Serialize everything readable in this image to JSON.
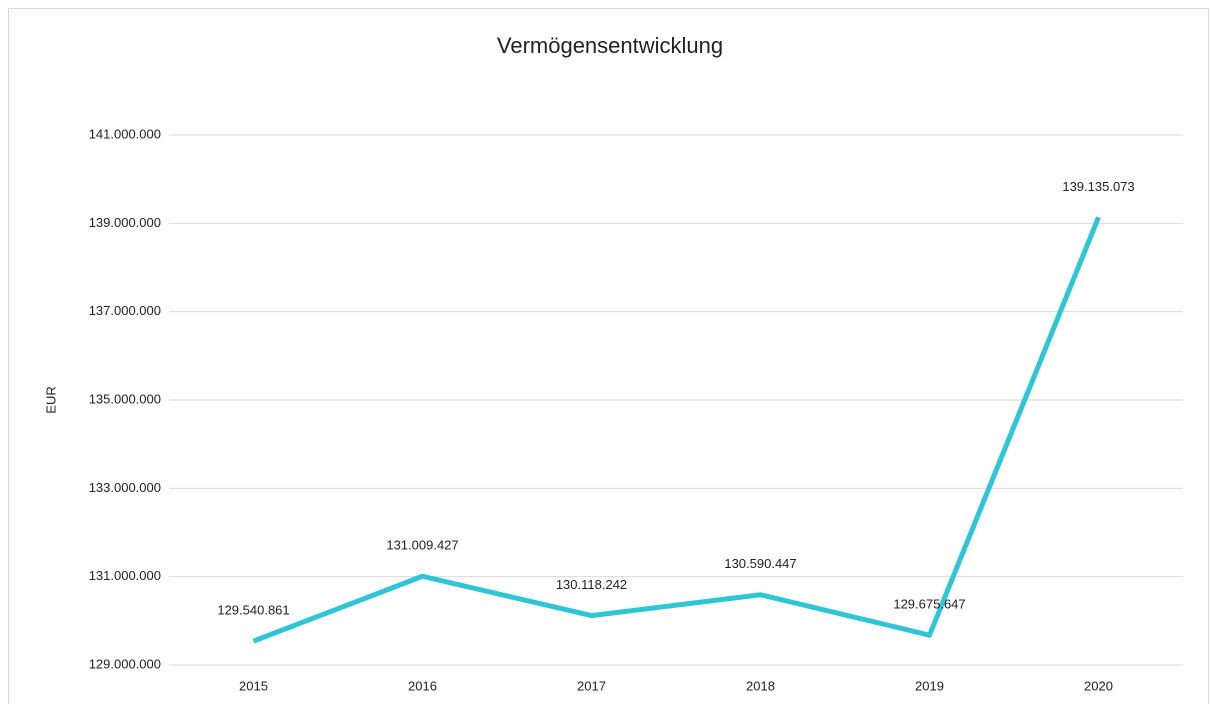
{
  "chart_data": {
    "type": "line",
    "title": "Vermögensentwicklung",
    "y_label": "EUR",
    "categories": [
      "2015",
      "2016",
      "2017",
      "2018",
      "2019",
      "2020"
    ],
    "series": [
      {
        "color": "#2ec5d7",
        "values": [
          129540861,
          131009427,
          130118242,
          130590447,
          129675647,
          139135073
        ],
        "value_labels": [
          "129.540.861",
          "131.009.427",
          "130.118.242",
          "130.590.447",
          "129.675.647",
          "139.135.073"
        ]
      }
    ],
    "ylim": [
      129000000,
      141000000
    ],
    "yticks": [
      {
        "value": 129000000,
        "label": "129.000.000"
      },
      {
        "value": 131000000,
        "label": "131.000.000"
      },
      {
        "value": 133000000,
        "label": "133.000.000"
      },
      {
        "value": 135000000,
        "label": "135.000.000"
      },
      {
        "value": 137000000,
        "label": "137.000.000"
      },
      {
        "value": 139000000,
        "label": "139.000.000"
      },
      {
        "value": 141000000,
        "label": "141.000.000"
      }
    ],
    "grid": true
  }
}
